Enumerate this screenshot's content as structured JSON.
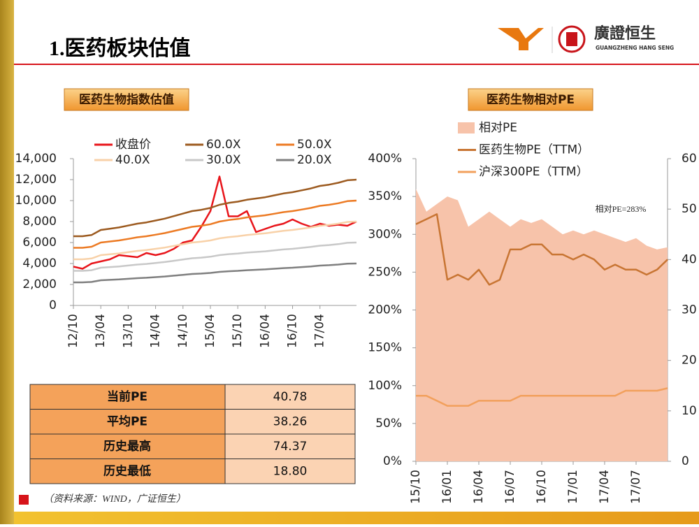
{
  "header": {
    "title": "1.医药板块估值",
    "brand": "廣證恒生",
    "brand_en": "GUANGZHENG HANG SENG"
  },
  "chart_data": [
    {
      "type": "line",
      "title": "医药生物指数估值",
      "legend": "top",
      "categories": [
        "12/10",
        null,
        null,
        "13/04",
        null,
        null,
        "13/10",
        null,
        null,
        "14/04",
        null,
        null,
        "14/10",
        null,
        null,
        "15/04",
        null,
        null,
        "15/10",
        null,
        null,
        "16/04",
        null,
        null,
        "16/10",
        null,
        null,
        "17/04",
        null,
        null,
        null,
        null
      ],
      "ylim": [
        0,
        14000
      ],
      "yticks": [
        0,
        {
          "value": 2000,
          "label": "2,000"
        },
        {
          "value": 4000,
          "label": "4,000"
        },
        {
          "value": 6000,
          "label": "6,000"
        },
        {
          "value": 8000,
          "label": "8,000"
        },
        {
          "value": 10000,
          "label": "10,000"
        },
        {
          "value": 12000,
          "label": "12,000"
        },
        {
          "value": 14000,
          "label": "14,000"
        }
      ],
      "series": [
        {
          "name": "收盘价",
          "color": "#e8141a",
          "values": [
            3700,
            3500,
            4000,
            4200,
            4400,
            4800,
            4700,
            4600,
            5000,
            4800,
            5000,
            5400,
            6000,
            6200,
            7500,
            9000,
            12300,
            8500,
            8500,
            9000,
            7000,
            7300,
            7600,
            7800,
            8200,
            7800,
            7500,
            7800,
            7600,
            7700,
            7600,
            8000
          ]
        },
        {
          "name": "60.0X",
          "color": "#9c5a1f",
          "values": [
            6600,
            6600,
            6720,
            7200,
            7320,
            7440,
            7620,
            7800,
            7920,
            8100,
            8280,
            8520,
            8760,
            9000,
            9120,
            9300,
            9600,
            9780,
            9900,
            10080,
            10200,
            10320,
            10500,
            10680,
            10800,
            10980,
            11160,
            11400,
            11520,
            11700,
            11940,
            12000
          ]
        },
        {
          "name": "50.0X",
          "color": "#ec7a23",
          "values": [
            5500,
            5500,
            5600,
            6000,
            6100,
            6200,
            6350,
            6500,
            6600,
            6750,
            6900,
            7100,
            7300,
            7500,
            7600,
            7750,
            8000,
            8150,
            8250,
            8400,
            8500,
            8600,
            8750,
            8900,
            9000,
            9150,
            9300,
            9500,
            9600,
            9750,
            9950,
            10000
          ]
        },
        {
          "name": "40.0X",
          "color": "#f8d1a8",
          "values": [
            4400,
            4400,
            4480,
            4800,
            4880,
            4960,
            5080,
            5200,
            5280,
            5400,
            5520,
            5680,
            5840,
            6000,
            6080,
            6200,
            6400,
            6520,
            6600,
            6720,
            6800,
            6880,
            7000,
            7120,
            7200,
            7320,
            7440,
            7600,
            7680,
            7800,
            7960,
            8000
          ]
        },
        {
          "name": "30.0X",
          "color": "#c8c8c8",
          "values": [
            3300,
            3300,
            3360,
            3600,
            3660,
            3720,
            3810,
            3900,
            3960,
            4050,
            4140,
            4260,
            4380,
            4500,
            4560,
            4650,
            4800,
            4890,
            4950,
            5040,
            5100,
            5160,
            5250,
            5340,
            5400,
            5490,
            5580,
            5700,
            5760,
            5850,
            5970,
            6000
          ]
        },
        {
          "name": "20.0X",
          "color": "#7f7f7f",
          "values": [
            2200,
            2200,
            2240,
            2400,
            2440,
            2480,
            2540,
            2600,
            2640,
            2700,
            2760,
            2840,
            2920,
            3000,
            3040,
            3100,
            3200,
            3260,
            3300,
            3360,
            3400,
            3440,
            3500,
            3560,
            3600,
            3660,
            3720,
            3800,
            3840,
            3900,
            3980,
            4000
          ]
        }
      ]
    },
    {
      "type": "line",
      "title": "医药生物相对PE",
      "legend": "top",
      "annotation": "相对PE=283%",
      "categories": [
        "15/10",
        null,
        null,
        "16/01",
        null,
        null,
        "16/04",
        null,
        null,
        "16/07",
        null,
        null,
        "16/10",
        null,
        null,
        "17/01",
        null,
        null,
        "17/04",
        null,
        null,
        "17/07",
        null,
        null,
        null
      ],
      "ylim": [
        0,
        400
      ],
      "yticks": [
        {
          "value": 0,
          "label": "0%"
        },
        {
          "value": 50,
          "label": "50%"
        },
        {
          "value": 100,
          "label": "100%"
        },
        {
          "value": 150,
          "label": "150%"
        },
        {
          "value": 200,
          "label": "200%"
        },
        {
          "value": 250,
          "label": "250%"
        },
        {
          "value": 300,
          "label": "300%"
        },
        {
          "value": 350,
          "label": "350%"
        },
        {
          "value": 400,
          "label": "400%"
        }
      ],
      "y2lim": [
        0,
        60
      ],
      "y2ticks": [
        0,
        10,
        20,
        30,
        40,
        50,
        60
      ],
      "series": [
        {
          "name": "相对PE",
          "color": "#f7c3aa",
          "area": true,
          "values": [
            360,
            330,
            340,
            350,
            345,
            310,
            320,
            330,
            320,
            310,
            320,
            315,
            320,
            310,
            300,
            305,
            300,
            305,
            300,
            295,
            290,
            295,
            285,
            280,
            283
          ]
        },
        {
          "name": "医药生物PE（TTM）",
          "color": "#c87533",
          "axis": "y2",
          "values": [
            47,
            48,
            49,
            36,
            37,
            36,
            38,
            35,
            36,
            42,
            42,
            43,
            43,
            41,
            41,
            40,
            41,
            40,
            38,
            39,
            38,
            38,
            37,
            38,
            40
          ]
        },
        {
          "name": "沪深300PE（TTM）",
          "color": "#f2a05c",
          "axis": "y2",
          "values": [
            13,
            13,
            12,
            11,
            11,
            11,
            12,
            12,
            12,
            12,
            13,
            13,
            13,
            13,
            13,
            13,
            13,
            13,
            13,
            13,
            14,
            14,
            14,
            14,
            14.5
          ]
        }
      ]
    }
  ],
  "table": {
    "rows": [
      [
        "当前PE",
        "40.78"
      ],
      [
        "平均PE",
        "38.26"
      ],
      [
        "历史最高",
        "74.37"
      ],
      [
        "历史最低",
        "18.80"
      ]
    ]
  },
  "source": "（资料来源：WIND，广证恒生）"
}
